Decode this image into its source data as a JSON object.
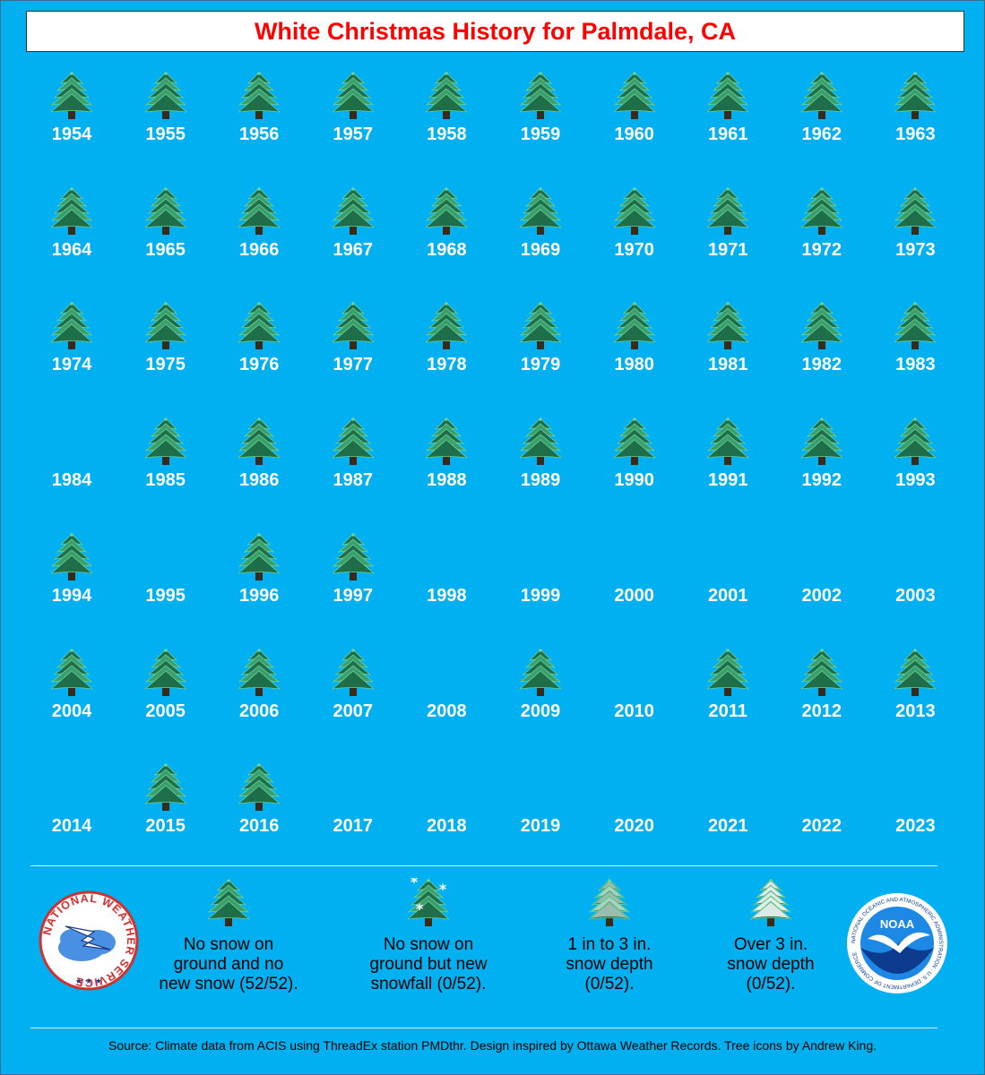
{
  "title": "White Christmas History for Palmdale, CA",
  "colors": {
    "background": "#00b0f0",
    "title": "#ff0000",
    "year_text": "#ffffff",
    "tree_green": "#2e8b57"
  },
  "years": [
    {
      "year": "1954",
      "icon": "green-tree-icon"
    },
    {
      "year": "1955",
      "icon": "green-tree-icon"
    },
    {
      "year": "1956",
      "icon": "green-tree-icon"
    },
    {
      "year": "1957",
      "icon": "green-tree-icon"
    },
    {
      "year": "1958",
      "icon": "green-tree-icon"
    },
    {
      "year": "1959",
      "icon": "green-tree-icon"
    },
    {
      "year": "1960",
      "icon": "green-tree-icon"
    },
    {
      "year": "1961",
      "icon": "green-tree-icon"
    },
    {
      "year": "1962",
      "icon": "green-tree-icon"
    },
    {
      "year": "1963",
      "icon": "green-tree-icon"
    },
    {
      "year": "1964",
      "icon": "green-tree-icon"
    },
    {
      "year": "1965",
      "icon": "green-tree-icon"
    },
    {
      "year": "1966",
      "icon": "green-tree-icon"
    },
    {
      "year": "1967",
      "icon": "green-tree-icon"
    },
    {
      "year": "1968",
      "icon": "green-tree-icon"
    },
    {
      "year": "1969",
      "icon": "green-tree-icon"
    },
    {
      "year": "1970",
      "icon": "green-tree-icon"
    },
    {
      "year": "1971",
      "icon": "green-tree-icon"
    },
    {
      "year": "1972",
      "icon": "green-tree-icon"
    },
    {
      "year": "1973",
      "icon": "green-tree-icon"
    },
    {
      "year": "1974",
      "icon": "green-tree-icon"
    },
    {
      "year": "1975",
      "icon": "green-tree-icon"
    },
    {
      "year": "1976",
      "icon": "green-tree-icon"
    },
    {
      "year": "1977",
      "icon": "green-tree-icon"
    },
    {
      "year": "1978",
      "icon": "green-tree-icon"
    },
    {
      "year": "1979",
      "icon": "green-tree-icon"
    },
    {
      "year": "1980",
      "icon": "green-tree-icon"
    },
    {
      "year": "1981",
      "icon": "green-tree-icon"
    },
    {
      "year": "1982",
      "icon": "green-tree-icon"
    },
    {
      "year": "1983",
      "icon": "green-tree-icon"
    },
    {
      "year": "1984",
      "icon": ""
    },
    {
      "year": "1985",
      "icon": "green-tree-icon"
    },
    {
      "year": "1986",
      "icon": "green-tree-icon"
    },
    {
      "year": "1987",
      "icon": "green-tree-icon"
    },
    {
      "year": "1988",
      "icon": "green-tree-icon"
    },
    {
      "year": "1989",
      "icon": "green-tree-icon"
    },
    {
      "year": "1990",
      "icon": "green-tree-icon"
    },
    {
      "year": "1991",
      "icon": "green-tree-icon"
    },
    {
      "year": "1992",
      "icon": "green-tree-icon"
    },
    {
      "year": "1993",
      "icon": "green-tree-icon"
    },
    {
      "year": "1994",
      "icon": "green-tree-icon"
    },
    {
      "year": "1995",
      "icon": ""
    },
    {
      "year": "1996",
      "icon": "green-tree-icon"
    },
    {
      "year": "1997",
      "icon": "green-tree-icon"
    },
    {
      "year": "1998",
      "icon": ""
    },
    {
      "year": "1999",
      "icon": ""
    },
    {
      "year": "2000",
      "icon": ""
    },
    {
      "year": "2001",
      "icon": ""
    },
    {
      "year": "2002",
      "icon": ""
    },
    {
      "year": "2003",
      "icon": ""
    },
    {
      "year": "2004",
      "icon": "green-tree-icon"
    },
    {
      "year": "2005",
      "icon": "green-tree-icon"
    },
    {
      "year": "2006",
      "icon": "green-tree-icon"
    },
    {
      "year": "2007",
      "icon": "green-tree-icon"
    },
    {
      "year": "2008",
      "icon": ""
    },
    {
      "year": "2009",
      "icon": "green-tree-icon"
    },
    {
      "year": "2010",
      "icon": ""
    },
    {
      "year": "2011",
      "icon": "green-tree-icon"
    },
    {
      "year": "2012",
      "icon": "green-tree-icon"
    },
    {
      "year": "2013",
      "icon": "green-tree-icon"
    },
    {
      "year": "2014",
      "icon": ""
    },
    {
      "year": "2015",
      "icon": "green-tree-icon"
    },
    {
      "year": "2016",
      "icon": "green-tree-icon"
    },
    {
      "year": "2017",
      "icon": ""
    },
    {
      "year": "2018",
      "icon": ""
    },
    {
      "year": "2019",
      "icon": ""
    },
    {
      "year": "2020",
      "icon": ""
    },
    {
      "year": "2021",
      "icon": ""
    },
    {
      "year": "2022",
      "icon": ""
    },
    {
      "year": "2023",
      "icon": ""
    }
  ],
  "legend": [
    {
      "icon": "green-tree-icon",
      "text": [
        "No snow on",
        "ground and no",
        "new snow (52/52)."
      ]
    },
    {
      "icon": "snowflake-tree-icon",
      "text": [
        "No snow on",
        "ground but new",
        "snowfall (0/52)."
      ]
    },
    {
      "icon": "light-snow-tree-icon",
      "text": [
        "1 in to 3 in.",
        "snow depth",
        "(0/52)."
      ]
    },
    {
      "icon": "heavy-snow-tree-icon",
      "text": [
        "Over 3 in.",
        "snow depth",
        "(0/52)."
      ]
    }
  ],
  "nws_logo_text": "NATIONAL WEATHER SERVICE",
  "noaa_logo_text": "NOAA",
  "noaa_ring_text": "NATIONAL OCEANIC AND ATMOSPHERIC ADMINISTRATION · U.S. DEPARTMENT OF COMMERCE",
  "source": "Source: Climate data from ACIS using ThreadEx station PMDthr. Design inspired by Ottawa Weather Records. Tree icons by Andrew King."
}
